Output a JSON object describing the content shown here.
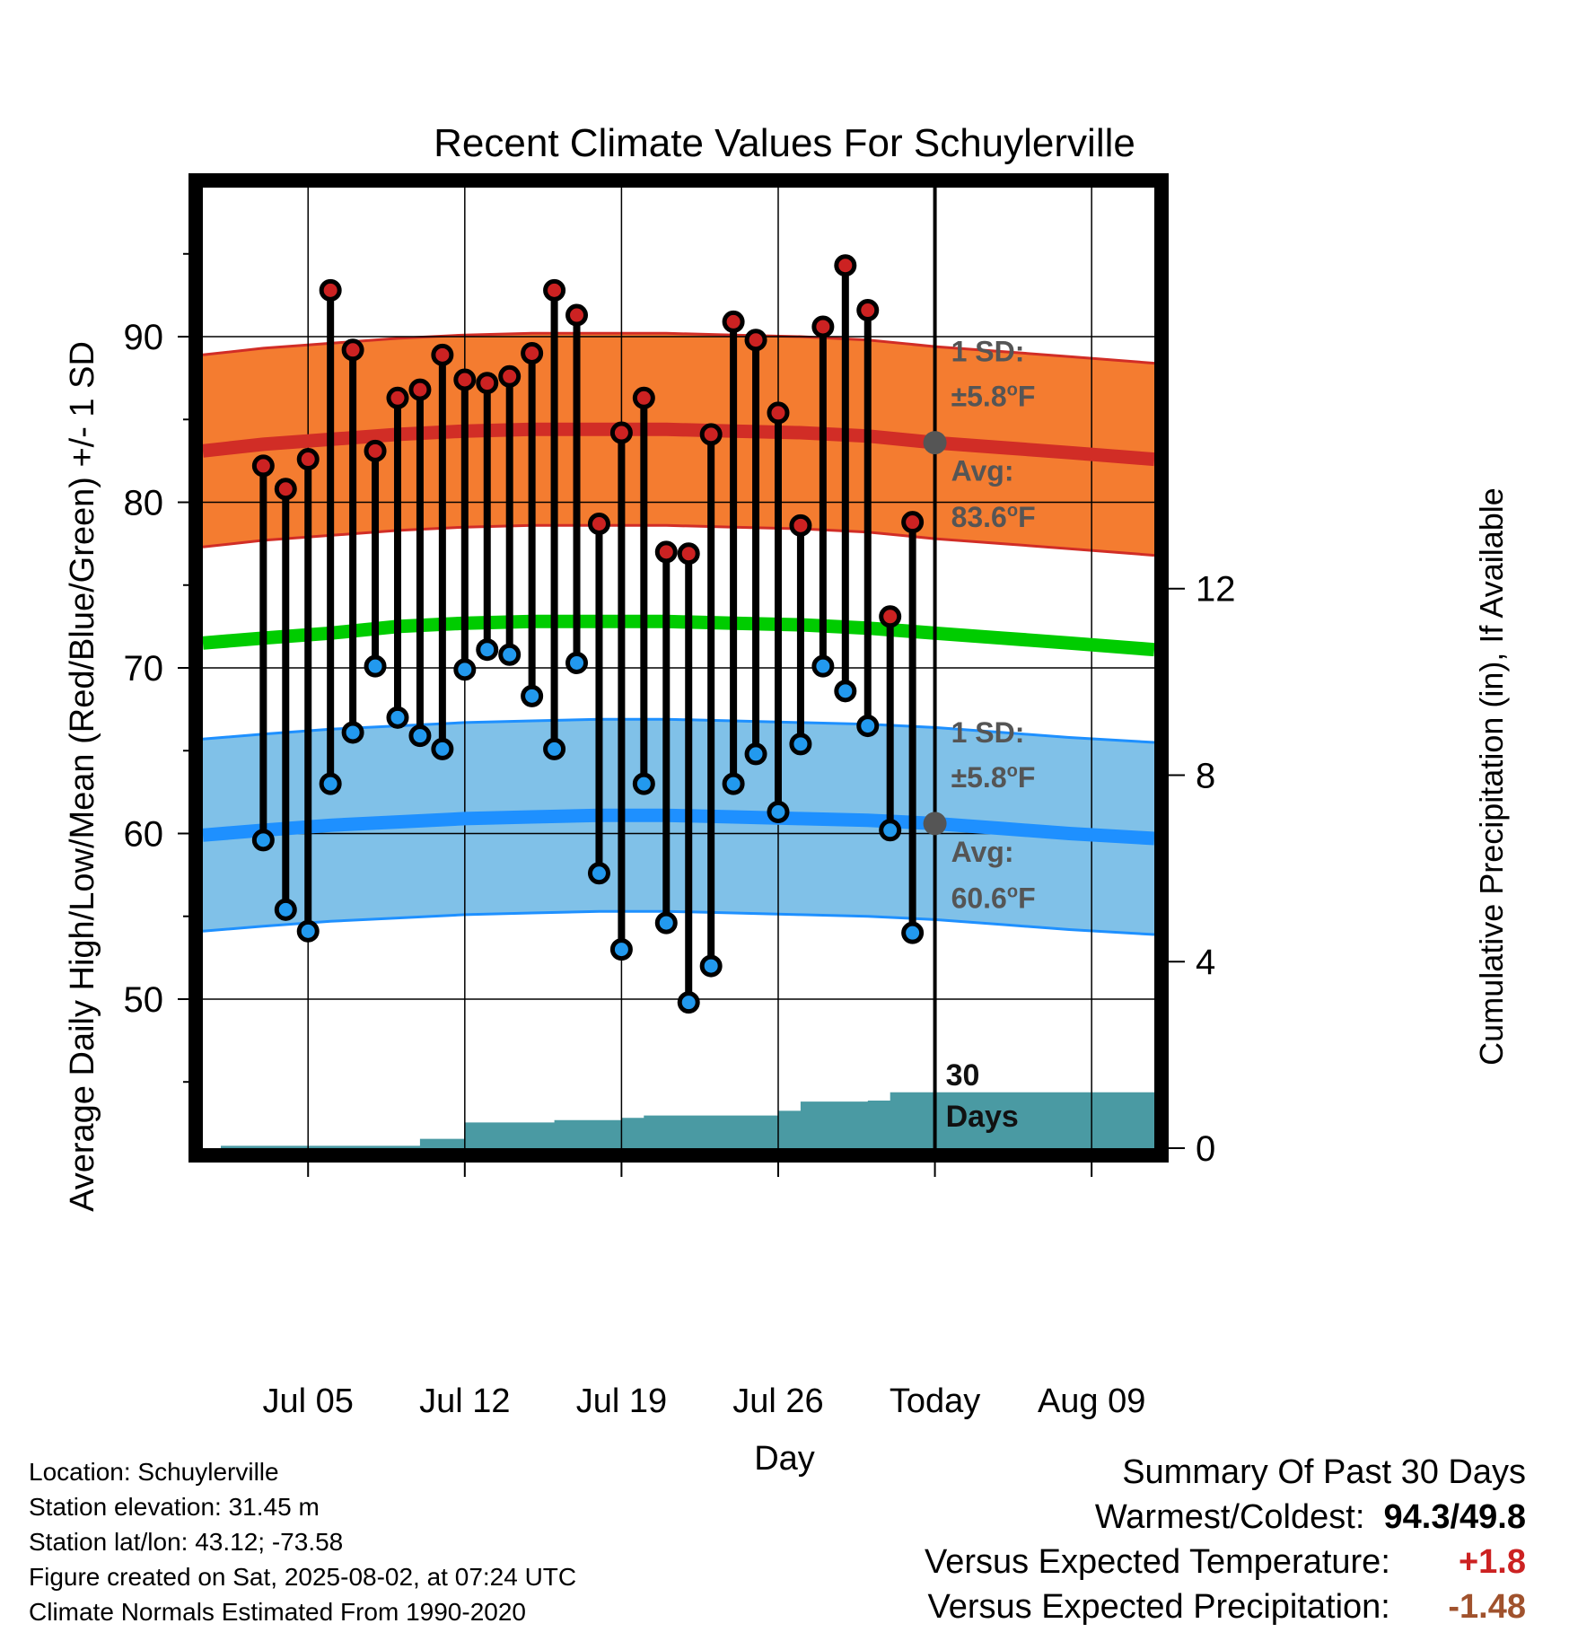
{
  "chart_data": {
    "type": "line",
    "title": "Recent Climate Values For Schuylerville",
    "xlabel": "Day",
    "ylabel_left": "Average Daily High/Low/Mean (Red/Blue/Green) +/- 1 SD",
    "ylabel_right": "Cumulative Precipitation (in), If Available",
    "x_ticks": [
      {
        "day": 5,
        "label": "Jul 05"
      },
      {
        "day": 12,
        "label": "Jul 12"
      },
      {
        "day": 19,
        "label": "Jul 19"
      },
      {
        "day": 26,
        "label": "Jul 26"
      },
      {
        "day": 33,
        "label": "Today"
      },
      {
        "day": 40,
        "label": "Aug 09"
      }
    ],
    "xlim_days": [
      0.3,
      42.8
    ],
    "ylim_left": [
      41,
      99
    ],
    "yticks_left": [
      50,
      60,
      70,
      80,
      90
    ],
    "ylim_right": [
      0,
      20.6
    ],
    "yticks_right": [
      0,
      4,
      8,
      12
    ],
    "today_day": 33,
    "grid": true,
    "days": [
      3,
      4,
      5,
      6,
      7,
      8,
      9,
      10,
      11,
      12,
      13,
      14,
      15,
      16,
      17,
      18,
      19,
      20,
      21,
      22,
      23,
      24,
      25,
      26,
      27,
      28,
      29,
      30,
      31,
      32
    ],
    "series": [
      {
        "name": "High",
        "color": "#cc2222",
        "values": [
          82.2,
          80.8,
          82.6,
          92.8,
          89.2,
          83.1,
          86.3,
          86.8,
          88.9,
          87.4,
          87.2,
          87.6,
          89,
          92.8,
          91.3,
          78.7,
          84.2,
          86.3,
          77,
          76.9,
          84.1,
          90.9,
          89.8,
          85.4,
          78.6,
          90.6,
          94.3,
          91.6,
          73.1,
          78.8
        ]
      },
      {
        "name": "Low",
        "color": "#2299ee",
        "values": [
          59.6,
          55.4,
          54.1,
          63,
          66.1,
          70.1,
          67,
          65.9,
          65.1,
          69.9,
          71.1,
          70.8,
          68.3,
          65.1,
          70.3,
          57.6,
          53,
          63,
          54.6,
          49.8,
          52,
          63,
          64.8,
          61.3,
          65.4,
          70.1,
          68.6,
          66.5,
          60.2,
          54
        ]
      }
    ],
    "normals": {
      "days": [
        0.3,
        3,
        6,
        9,
        12,
        15,
        18,
        21,
        24,
        27,
        30,
        33,
        36,
        39,
        42.8
      ],
      "avg_high": [
        83.1,
        83.5,
        83.8,
        84.1,
        84.3,
        84.4,
        84.4,
        84.4,
        84.3,
        84.2,
        84,
        83.6,
        83.3,
        83,
        82.6
      ],
      "avg_low": [
        59.9,
        60.2,
        60.5,
        60.7,
        60.9,
        61,
        61.1,
        61.1,
        61,
        60.9,
        60.8,
        60.6,
        60.3,
        60,
        59.7
      ],
      "avg_mean": [
        71.5,
        71.8,
        72.1,
        72.5,
        72.7,
        72.8,
        72.8,
        72.8,
        72.7,
        72.6,
        72.4,
        72.1,
        71.8,
        71.5,
        71.1
      ],
      "sd": 5.8
    },
    "precip_cumulative": {
      "days": [
        0.3,
        1.1,
        1.1,
        5,
        7,
        9.2,
        9.2,
        10,
        10,
        11,
        11,
        12,
        12,
        14,
        14,
        16,
        16,
        17,
        17,
        19,
        19,
        20,
        20,
        22,
        22,
        26,
        26,
        27,
        27,
        30,
        30,
        31,
        31,
        33,
        42.8
      ],
      "values": [
        0,
        0,
        0.05,
        0.05,
        0.05,
        0.05,
        0.05,
        0.05,
        0.2,
        0.2,
        0.2,
        0.2,
        0.55,
        0.55,
        0.55,
        0.55,
        0.6,
        0.6,
        0.6,
        0.6,
        0.65,
        0.65,
        0.7,
        0.7,
        0.7,
        0.7,
        0.8,
        0.8,
        1,
        1,
        1.02,
        1.02,
        1.2,
        1.2,
        1.2
      ],
      "fill_color": "#4a9aa3"
    },
    "annotations": {
      "high_sd_label_1": "1 SD:",
      "high_sd_label_2": "±5.8°F",
      "high_avg_label_1": "Avg:",
      "high_avg_label_2": "83.6°F",
      "high_avg_value": 83.6,
      "low_sd_label_1": "1 SD:",
      "low_sd_label_2": "±5.8°F",
      "low_avg_label_1": "Avg:",
      "low_avg_label_2": "60.6°F",
      "low_avg_value": 60.6,
      "days_label_1": "30",
      "days_label_2": "Days"
    },
    "colors": {
      "high_band": "#f47c30",
      "high_line": "#d12d26",
      "low_band": "#80c1e8",
      "low_line": "#1e90ff",
      "mean_line": "#00cc00",
      "annotation_text": "#555555"
    }
  },
  "footer": {
    "location": "Location: Schuylerville",
    "elevation": "Station elevation: 31.45 m",
    "latlon": "Station lat/lon: 43.12; -73.58",
    "created": "Figure created on Sat, 2025-08-02, at 07:24 UTC",
    "normals": "Climate Normals Estimated From 1990-2020"
  },
  "summary": {
    "title": "Summary Of Past 30 Days",
    "warm_cold_label": "Warmest/Coldest:",
    "warm_cold_value": "94.3/49.8",
    "temp_label": "Versus Expected Temperature:",
    "temp_value": "+1.8",
    "temp_color": "#cc2222",
    "precip_label": "Versus Expected Precipitation:",
    "precip_value": "-1.48",
    "precip_color": "#a0522d"
  }
}
